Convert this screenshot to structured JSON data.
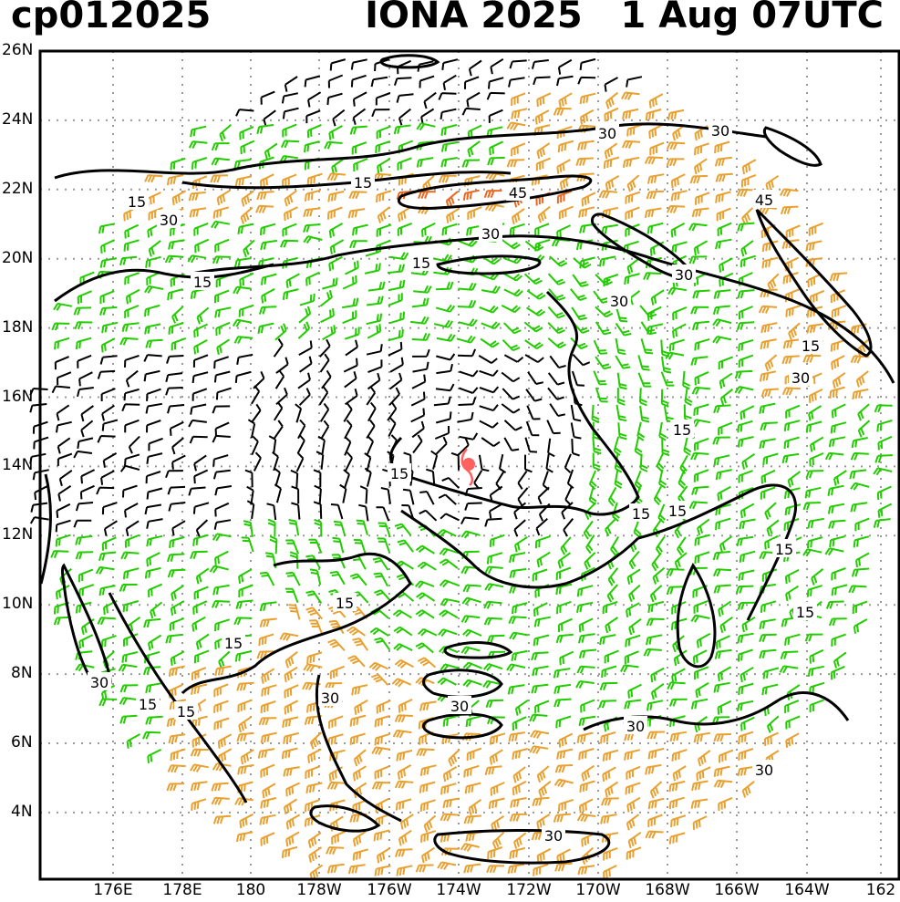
{
  "header": {
    "storm_id": "cp012025",
    "storm_title": "IONA 2025   1 Aug 07UTC"
  },
  "axes": {
    "lat_labels": [
      "26N",
      "24N",
      "22N",
      "20N",
      "18N",
      "16N",
      "14N",
      "12N",
      "10N",
      "8N",
      "6N",
      "4N"
    ],
    "lon_labels": [
      "176E",
      "178E",
      "180",
      "178W",
      "176W",
      "174W",
      "172W",
      "170W",
      "168W",
      "166W",
      "164W",
      "162"
    ]
  },
  "contour_labels": [
    "30",
    "30",
    "15",
    "45",
    "30",
    "15",
    "15",
    "30",
    "30",
    "45",
    "15",
    "30",
    "15",
    "30",
    "15",
    "15",
    "15",
    "15",
    "15",
    "15",
    "15",
    "30",
    "15",
    "15",
    "15",
    "30",
    "30",
    "30",
    "30",
    "30"
  ],
  "colors": {
    "weak_barb": "#000000",
    "moderate_barb": "#22cc00",
    "strong_barb": "#e8a030",
    "very_strong_barb": "#e86820",
    "contour": "#000000",
    "storm_center": "#ff6060",
    "grid": "#999999"
  },
  "legend_note": ""
}
